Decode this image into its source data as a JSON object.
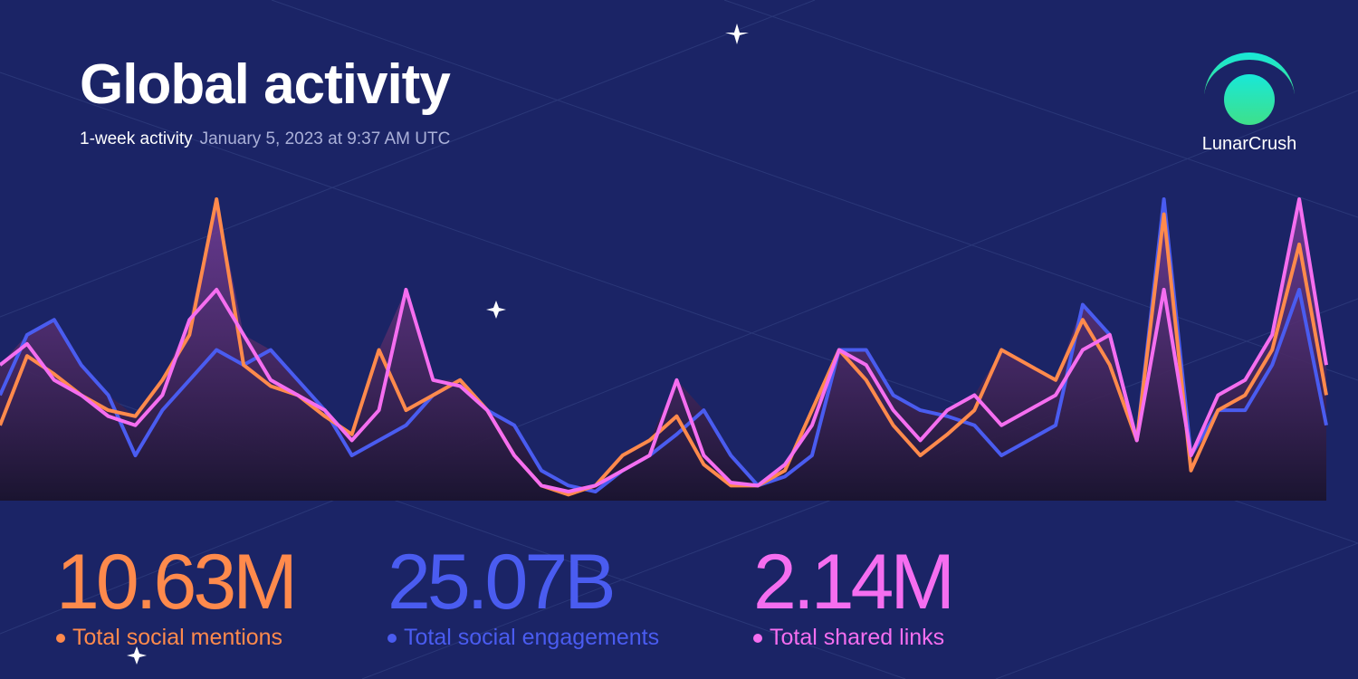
{
  "header": {
    "title": "Global activity",
    "subtitle": "1-week activity",
    "timestamp": "January 5, 2023 at 9:37 AM UTC",
    "brand": "LunarCrush"
  },
  "chart_data": {
    "type": "line",
    "ylim": [
      0,
      100
    ],
    "series": [
      {
        "name": "Total social mentions",
        "total": "10.63M",
        "color": "#ff8a4c",
        "values": [
          25,
          48,
          42,
          35,
          30,
          28,
          40,
          55,
          100,
          45,
          38,
          35,
          28,
          22,
          50,
          30,
          35,
          40,
          30,
          15,
          5,
          2,
          5,
          15,
          20,
          28,
          12,
          5,
          5,
          10,
          30,
          50,
          40,
          25,
          15,
          22,
          30,
          50,
          45,
          40,
          60,
          45,
          20,
          95,
          10,
          30,
          35,
          50,
          85,
          35
        ]
      },
      {
        "name": "Total social engagements",
        "total": "25.07B",
        "color": "#4a5cf0",
        "values": [
          35,
          55,
          60,
          45,
          35,
          15,
          30,
          40,
          50,
          45,
          50,
          40,
          30,
          15,
          20,
          25,
          35,
          40,
          30,
          25,
          10,
          5,
          3,
          10,
          15,
          22,
          30,
          15,
          5,
          8,
          15,
          50,
          50,
          35,
          30,
          28,
          25,
          15,
          20,
          25,
          65,
          55,
          20,
          100,
          15,
          30,
          30,
          45,
          70,
          25
        ]
      },
      {
        "name": "Total shared links",
        "total": "2.14M",
        "color": "#f56ef0",
        "values": [
          45,
          52,
          40,
          35,
          28,
          25,
          35,
          60,
          70,
          55,
          40,
          35,
          30,
          20,
          30,
          70,
          40,
          38,
          30,
          15,
          5,
          3,
          5,
          10,
          15,
          40,
          15,
          6,
          5,
          12,
          25,
          50,
          45,
          30,
          20,
          30,
          35,
          25,
          30,
          35,
          50,
          55,
          20,
          70,
          15,
          35,
          40,
          55,
          100,
          45
        ]
      }
    ]
  }
}
